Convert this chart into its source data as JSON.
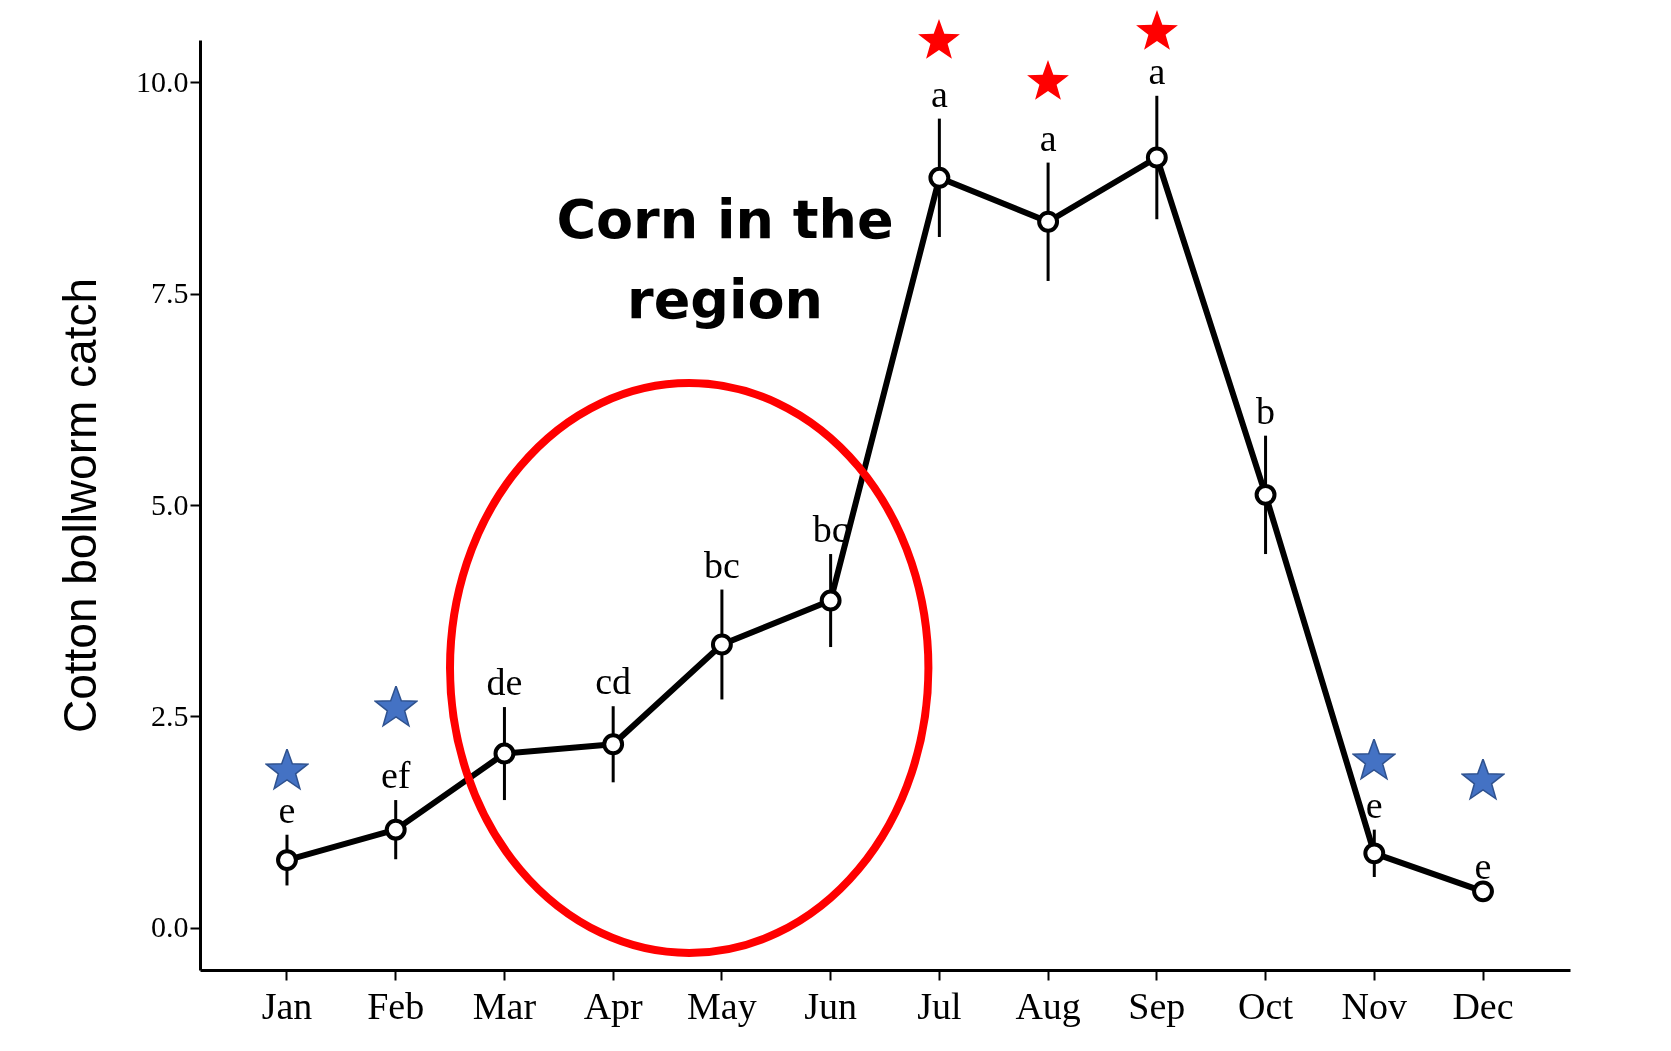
{
  "chart_data": {
    "type": "line",
    "ylabel": "Cotton bollworm catch",
    "categories": [
      "Jan",
      "Feb",
      "Mar",
      "Apr",
      "May",
      "Jun",
      "Jul",
      "Aug",
      "Sep",
      "Oct",
      "Nov",
      "Dec"
    ],
    "series": [
      {
        "color": "#000000",
        "values": [
          0.8,
          1.16,
          2.06,
          2.17,
          3.35,
          3.87,
          8.87,
          8.35,
          9.11,
          5.12,
          0.88,
          0.43
        ],
        "errors": [
          0.3,
          0.35,
          0.55,
          0.45,
          0.65,
          0.55,
          0.7,
          0.7,
          0.73,
          0.7,
          0.28,
          null
        ]
      }
    ],
    "ylim": [
      -0.5,
      10.5
    ],
    "yticks": [
      {
        "value": 0,
        "label": "0.0"
      },
      {
        "value": 2.5,
        "label": "2.5"
      },
      {
        "value": 5,
        "label": "5.0"
      },
      {
        "value": 7.5,
        "label": "7.5"
      },
      {
        "value": 10,
        "label": "10.0"
      }
    ],
    "marker": "circle",
    "line_style": "solid",
    "grid": false,
    "annotations": [
      "e",
      "ef",
      "de",
      "cd",
      "bc",
      "bc",
      "a",
      "a",
      "a",
      "b",
      "e",
      "e",
      "Corn in the region"
    ]
  }
}
